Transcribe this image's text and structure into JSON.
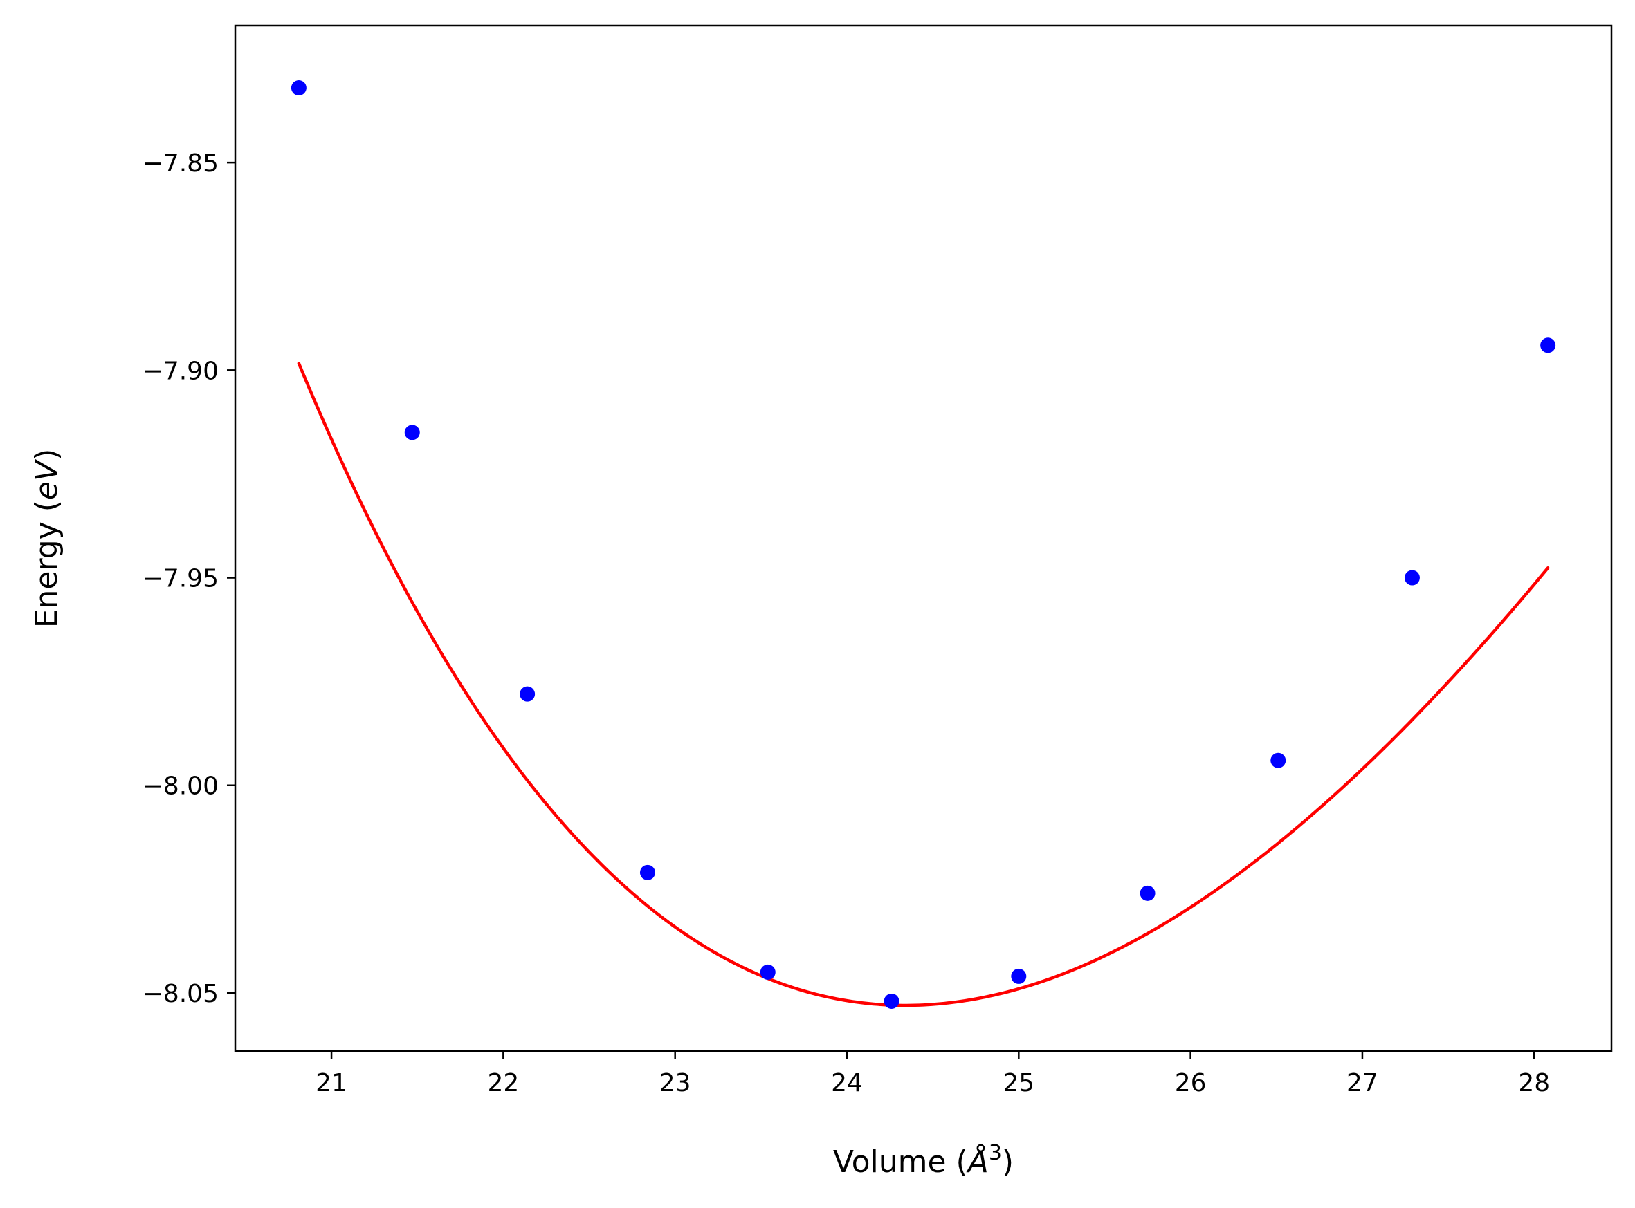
{
  "chart_data": {
    "type": "scatter",
    "title": "",
    "xlabel": "Volume (Å³)",
    "xlabel_parts": {
      "prefix": "Volume (",
      "symbol": "Å",
      "superscript": "3",
      "suffix": ")"
    },
    "ylabel": "Energy (eV)",
    "ylabel_parts": {
      "prefix": "Energy (",
      "symbol": "eV",
      "suffix": ")"
    },
    "xlim": [
      20.44,
      28.45
    ],
    "ylim": [
      -8.064,
      -7.817
    ],
    "xticks": [
      21,
      22,
      23,
      24,
      25,
      26,
      27,
      28
    ],
    "xtick_labels": [
      "21",
      "22",
      "23",
      "24",
      "25",
      "26",
      "27",
      "28"
    ],
    "yticks": [
      -7.85,
      -7.9,
      -7.95,
      -8.0,
      -8.05
    ],
    "ytick_labels": [
      "−7.85",
      "−7.90",
      "−7.95",
      "−8.00",
      "−8.05"
    ],
    "grid": false,
    "series": [
      {
        "kind": "points",
        "color": "#0000ff",
        "x": [
          20.81,
          21.47,
          22.14,
          22.84,
          23.54,
          24.26,
          25.0,
          25.75,
          26.51,
          27.29,
          28.08
        ],
        "y": [
          -7.832,
          -7.915,
          -7.978,
          -8.021,
          -8.045,
          -8.052,
          -8.046,
          -8.026,
          -7.994,
          -7.95,
          -7.894
        ]
      },
      {
        "kind": "fit-curve",
        "color": "#ff0000",
        "model": "birch-murnaghan",
        "E0": -8.053,
        "V0": 24.34,
        "B0": 0.4658,
        "B0_prime": 4.0,
        "x_range": [
          20.81,
          28.08
        ]
      }
    ]
  }
}
